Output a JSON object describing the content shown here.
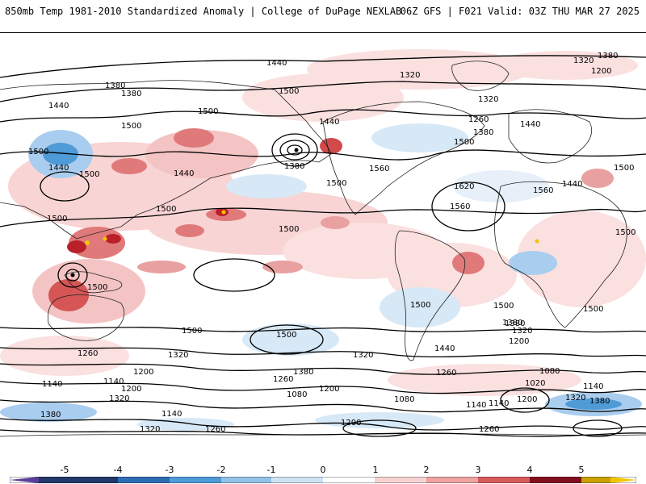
{
  "header": {
    "title_left": "850mb Temp 1981-2010 Standardized Anomaly | College of DuPage NEXLAB",
    "title_right": "06Z GFS | F021 Valid: 03Z THU MAR 27 2025"
  },
  "contours": {
    "labels": [
      "1440",
      "1500",
      "1380",
      "1380",
      "1440",
      "1500",
      "1500",
      "1440",
      "1500",
      "1500",
      "1440",
      "1500",
      "1380",
      "1500",
      "1560",
      "1620",
      "1560",
      "1500",
      "1440",
      "1500",
      "1500",
      "1500",
      "1500",
      "1560",
      "1500",
      "1500",
      "1500",
      "1440",
      "1380",
      "1260",
      "1320",
      "1200",
      "1140",
      "1140",
      "1200",
      "1260",
      "1320",
      "1380",
      "1260",
      "1140",
      "1320",
      "1380",
      "1080",
      "1200",
      "1140",
      "1200",
      "1080",
      "1260",
      "1440",
      "1500",
      "1380",
      "1320",
      "1200",
      "1080",
      "1020",
      "1140",
      "1140",
      "1200",
      "1320",
      "1380",
      "1260",
      "1320",
      "1380",
      "1320",
      "1320",
      "1260",
      "1380",
      "1440",
      "1500",
      "1500",
      "1200",
      "1320"
    ]
  },
  "colorbar": {
    "ticks": [
      "-5",
      "-4",
      "-3",
      "-2",
      "-1",
      "0",
      "1",
      "2",
      "3",
      "4",
      "5"
    ],
    "colors": [
      "#5a3f9a",
      "#21386b",
      "#2d6db3",
      "#4f9bd7",
      "#92c2e8",
      "#cfe3f4",
      "#ffffff",
      "#ffffff",
      "#f7d3d3",
      "#eea2a2",
      "#d95a5a",
      "#c01f2a",
      "#820f1e",
      "#f5c400"
    ]
  }
}
